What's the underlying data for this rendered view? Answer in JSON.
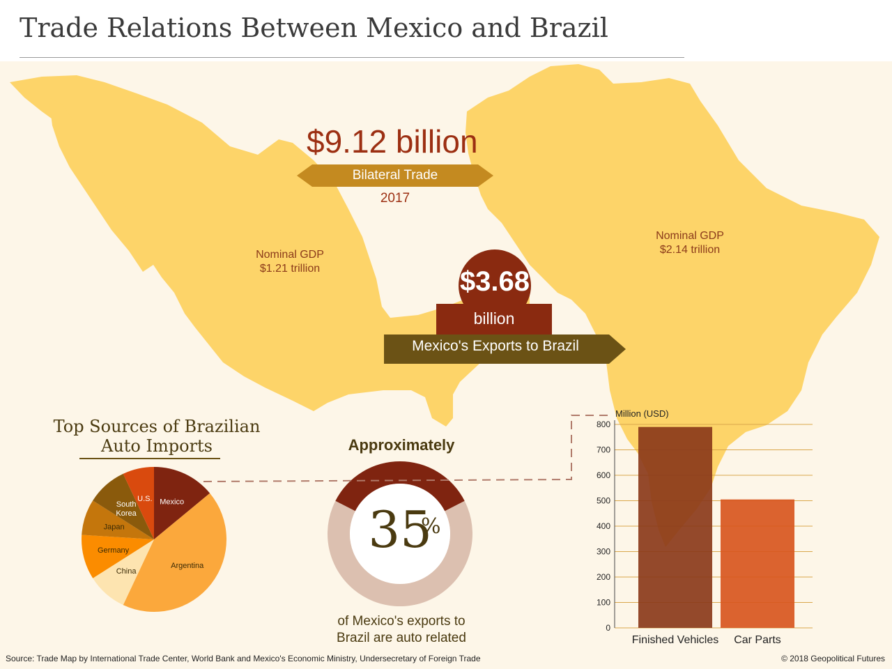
{
  "title": "Trade Relations Between Mexico and Brazil",
  "bilateral": {
    "value": "$9.12 billion",
    "label": "Bilateral Trade",
    "year": "2017"
  },
  "mexico": {
    "gdp_label": "Nominal GDP",
    "gdp_value": "$1.21 trillion"
  },
  "brazil": {
    "gdp_label": "Nominal GDP",
    "gdp_value": "$2.14 trillion"
  },
  "exports": {
    "value": "$3.68",
    "unit": "billion",
    "label": "Mexico's Exports to Brazil"
  },
  "auto_share": {
    "prefix": "Approximately",
    "value": "35",
    "sign": "%",
    "percent": 35,
    "description_line1": "of Mexico's exports to",
    "description_line2": "Brazil are auto related"
  },
  "pie_title_line1": "Top Sources of Brazilian",
  "pie_title_line2": "Auto Imports",
  "source": "Source: Trade Map by International Trade Center, World Bank and Mexico's Economic Ministry, Undersecretary of Foreign Trade",
  "copyright": "© 2018 Geopolitical Futures",
  "colors": {
    "map": "#fdd469",
    "dark_red": "#8a2a10",
    "olive": "#6b5215",
    "text_brown": "#4a3a10"
  },
  "chart_data": [
    {
      "type": "pie",
      "title": "Top Sources of Brazilian Auto Imports",
      "slices": [
        {
          "label": "Mexico",
          "value": 14,
          "color": "#7f2410"
        },
        {
          "label": "Argentina",
          "value": 43,
          "color": "#fba83c"
        },
        {
          "label": "China",
          "value": 9,
          "color": "#fde4b0"
        },
        {
          "label": "Germany",
          "value": 10,
          "color": "#fb8c00"
        },
        {
          "label": "Japan",
          "value": 8,
          "color": "#c4760c"
        },
        {
          "label": "South Korea",
          "value": 9,
          "color": "#8a5a0c"
        },
        {
          "label": "U.S.",
          "value": 7,
          "color": "#d94a0e"
        }
      ]
    },
    {
      "type": "bar",
      "ylabel": "Million (USD)",
      "categories": [
        "Finished Vehicles",
        "Car Parts"
      ],
      "values": [
        790,
        505
      ],
      "ylim": [
        0,
        800
      ],
      "yticks": [
        "0",
        "100",
        "200",
        "300",
        "400",
        "500",
        "600",
        "700",
        "800"
      ],
      "colors": [
        "#8b3a1a",
        "#d8561e"
      ],
      "grid": true
    }
  ]
}
